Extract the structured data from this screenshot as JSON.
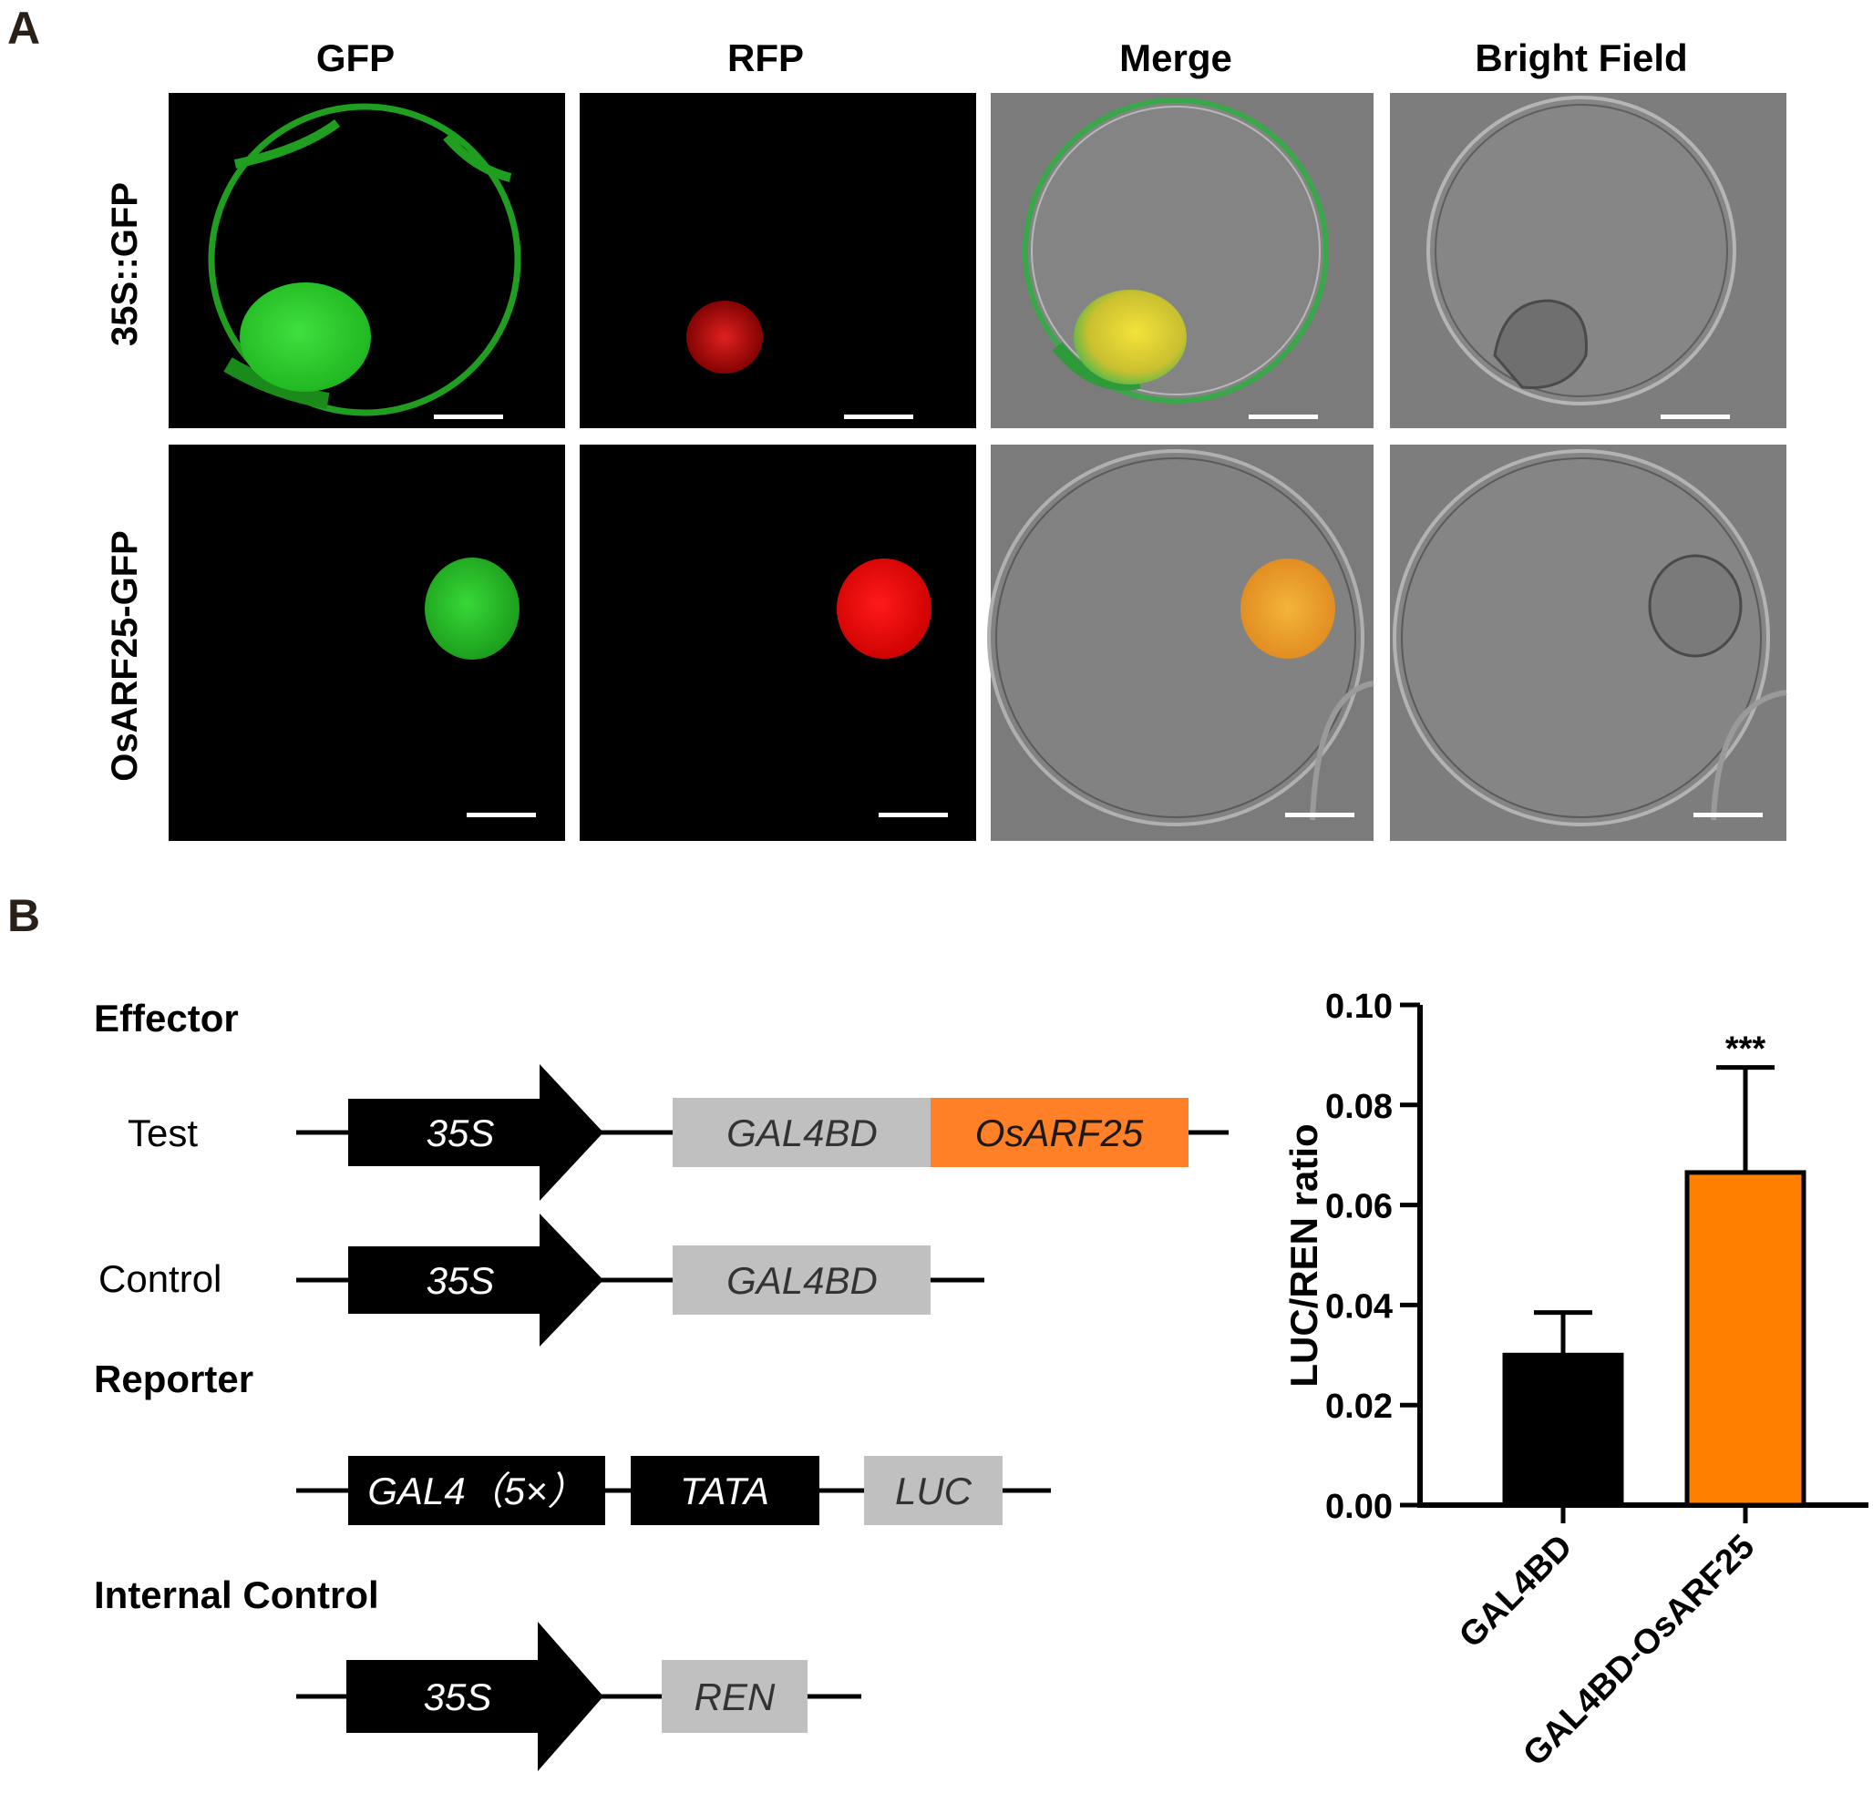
{
  "panel_a": {
    "label": "A",
    "columns": [
      "GFP",
      "RFP",
      "Merge",
      "Bright Field"
    ],
    "rows": [
      "35S::GFP",
      "OsARF25-GFP"
    ]
  },
  "panel_b": {
    "label": "B",
    "effector": {
      "heading": "Effector",
      "test_label": "Test",
      "control_label": "Control",
      "promoter": "35S",
      "gal4bd": "GAL4BD",
      "gene": "OsARF25"
    },
    "reporter": {
      "heading": "Reporter",
      "gal4": "GAL4（5×）",
      "tata": "TATA",
      "luc": "LUC"
    },
    "internal_control": {
      "heading": "Internal Control",
      "promoter": "35S",
      "ren": "REN"
    }
  },
  "chart_data": {
    "type": "bar",
    "categories": [
      "GAL4BD",
      "GAL4BD-OsARF25"
    ],
    "values": [
      0.03,
      0.0665
    ],
    "errors": [
      0.0085,
      0.021
    ],
    "colors": [
      "#000000",
      "#ff8000"
    ],
    "significance": [
      "",
      "***"
    ],
    "ylabel": "LUC/REN ratio",
    "ylim": [
      0,
      0.1
    ],
    "yticks": [
      "0.00",
      "0.02",
      "0.04",
      "0.06",
      "0.08",
      "0.10"
    ],
    "ytick_values": [
      0,
      0.02,
      0.04,
      0.06,
      0.08,
      0.1
    ]
  }
}
